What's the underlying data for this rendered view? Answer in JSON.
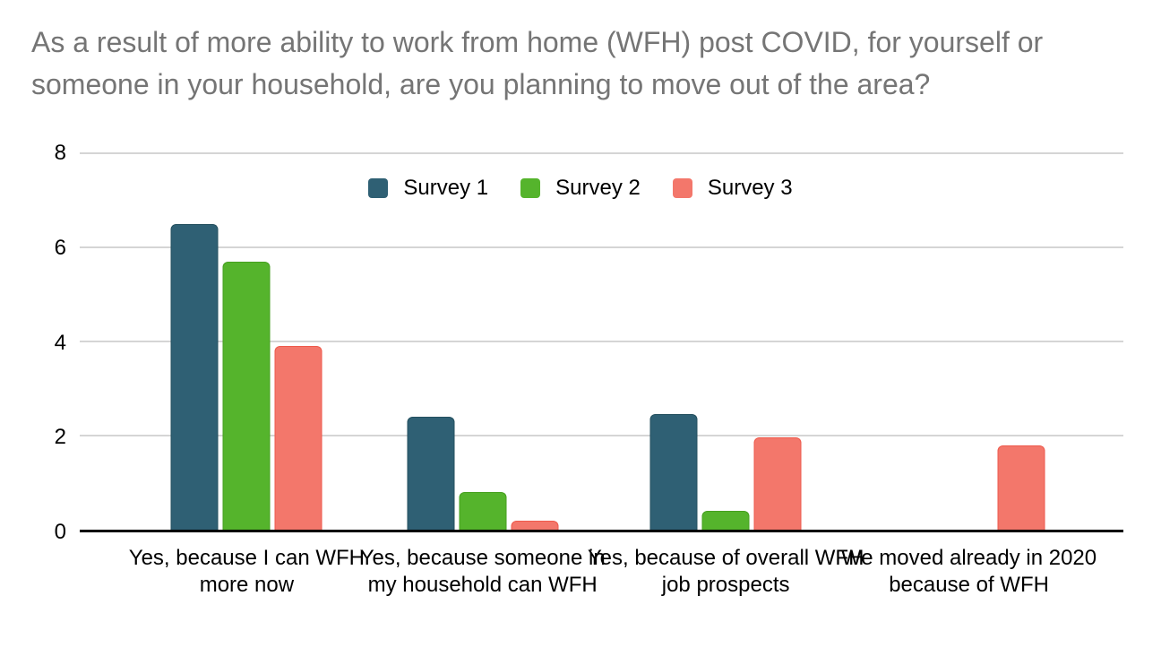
{
  "chart_data": {
    "type": "bar",
    "title": "As a result of more ability to work from home (WFH) post COVID, for yourself or someone in your household, are you planning to move out of the area?",
    "categories": [
      "Yes, because I can WFH more now",
      "Yes, because someone in my household can WFH",
      "Yes, because of overall WFH job prospects",
      "We moved already in 2020 because of WFH"
    ],
    "series": [
      {
        "name": "Survey 1",
        "color": "#2f6074",
        "border_color": "#24505f",
        "values": [
          6.5,
          2.4,
          2.45,
          0
        ]
      },
      {
        "name": "Survey 2",
        "color": "#55b42c",
        "border_color": "#46a01f",
        "values": [
          5.7,
          0.8,
          0.4,
          0
        ]
      },
      {
        "name": "Survey 3",
        "color": "#f3776b",
        "border_color": "#ee5a4c",
        "values": [
          3.9,
          0.2,
          1.97,
          1.8
        ]
      }
    ],
    "xlabel": "",
    "ylabel": "",
    "ylim": [
      0,
      8
    ],
    "yticks": [
      8,
      6,
      4,
      2,
      0
    ],
    "grid": true,
    "legend_position": "top-center",
    "colors": {
      "title": "#757575",
      "axis": "#000000",
      "gridline": "#d5d5d5",
      "tick_text": "#000000",
      "category_text": "#000000",
      "background": "#ffffff"
    }
  }
}
